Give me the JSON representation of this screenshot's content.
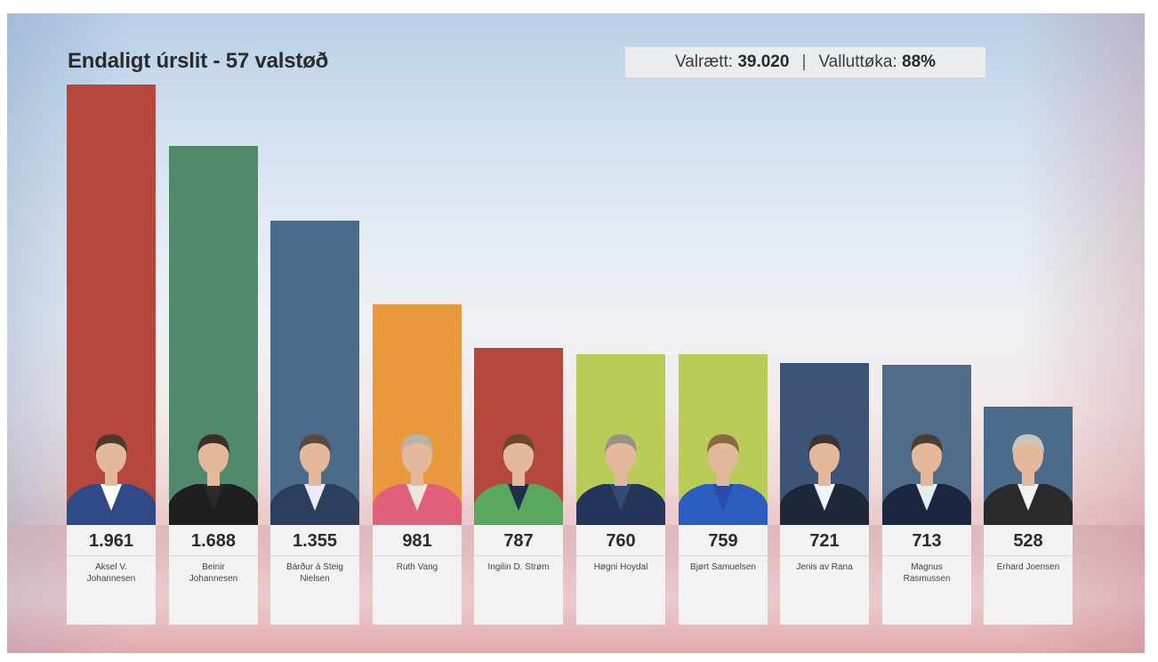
{
  "header": {
    "title": "Endaligt úrslit - 57 valstøð",
    "stats": {
      "eligible_label": "Valrætt:",
      "eligible_value": "39.020",
      "separator": "|",
      "turnout_label": "Valluttøka:",
      "turnout_value": "88%"
    }
  },
  "chart_data": {
    "type": "bar",
    "title": "Endaligt úrslit - 57 valstøð",
    "xlabel": "",
    "ylabel": "",
    "categories": [
      "Aksel V. Johannesen",
      "Beinir Johannesen",
      "Bárður á Steig Nielsen",
      "Ruth Vang",
      "Ingilin D. Strøm",
      "Høgni Hoydal",
      "Bjørt Samuelsen",
      "Jenis av Rana",
      "Magnus Rasmussen",
      "Erhard Joensen"
    ],
    "values": [
      1961,
      1688,
      1355,
      981,
      787,
      760,
      759,
      721,
      713,
      528
    ],
    "value_labels": [
      "1.961",
      "1.688",
      "1.355",
      "981",
      "787",
      "760",
      "759",
      "721",
      "713",
      "528"
    ],
    "name_lines": [
      [
        "Aksel V.",
        "Johannesen"
      ],
      [
        "Beinir",
        "Johannesen"
      ],
      [
        "Bárður á Steig",
        "Nielsen"
      ],
      [
        "Ruth Vang"
      ],
      [
        "Ingilin D. Strøm"
      ],
      [
        "Høgni Hoydal"
      ],
      [
        "Bjørt Samuelsen"
      ],
      [
        "Jenis av Rana"
      ],
      [
        "Magnus",
        "Rasmussen"
      ],
      [
        "Erhard Joensen"
      ]
    ],
    "bar_colors": [
      "#b5473c",
      "#4f8a6c",
      "#4a6b8a",
      "#ea9a3c",
      "#b5473c",
      "#b9cc58",
      "#b9cc58",
      "#3b5478",
      "#4f6d89",
      "#4a6b8a"
    ],
    "person_colors": {
      "skin": "#e4b89a",
      "hair": [
        "#4a3a2e",
        "#3b3026",
        "#5a4a3c",
        "#b9b2a8",
        "#6a4630",
        "#9a9088",
        "#8a6a42",
        "#3b3430",
        "#4a3e32",
        "#c8c4be"
      ],
      "jacket": [
        "#2f4a86",
        "#1f1f22",
        "#2d3e5c",
        "#e0607a",
        "#5aa860",
        "#24345a",
        "#2c5cc0",
        "#1e2838",
        "#1c2640",
        "#2a2a2c"
      ],
      "shirt": [
        "#ffffff",
        "#2a2a2a",
        "#e8edf5",
        "#f0e6dc",
        "#1f2e4a",
        "#324a78",
        "#2a4ea8",
        "#f2f4f8",
        "#e6ecf4",
        "#f2f2f2"
      ]
    },
    "ylim": [
      0,
      1961
    ],
    "grid": false,
    "legend": "none"
  }
}
